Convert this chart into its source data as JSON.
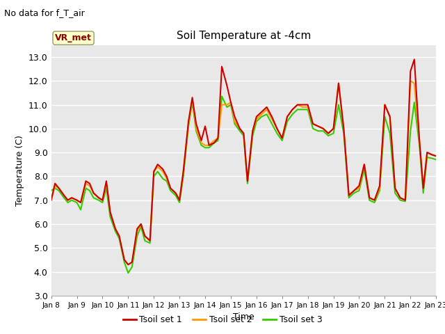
{
  "title": "Soil Temperature at -4cm",
  "xlabel": "Time",
  "ylabel": "Temperature (C)",
  "ylim": [
    3.0,
    13.5
  ],
  "yticks": [
    3.0,
    4.0,
    5.0,
    6.0,
    7.0,
    8.0,
    9.0,
    10.0,
    11.0,
    12.0,
    13.0
  ],
  "bg_color": "#e8e8e8",
  "fig_color": "#ffffff",
  "annotation_text": "No data for f_T_air",
  "legend_label": "VR_met",
  "x_days": [
    8,
    9,
    10,
    11,
    12,
    13,
    14,
    15,
    16,
    17,
    18,
    19,
    20,
    21,
    22,
    23
  ],
  "set1_color": "#cc0000",
  "set2_color": "#ff9900",
  "set3_color": "#33cc00",
  "set1_x": [
    8.0,
    8.15,
    8.3,
    8.5,
    8.65,
    8.8,
    9.0,
    9.15,
    9.35,
    9.5,
    9.65,
    9.85,
    10.0,
    10.15,
    10.3,
    10.5,
    10.65,
    10.85,
    11.0,
    11.15,
    11.35,
    11.5,
    11.65,
    11.85,
    12.0,
    12.15,
    12.35,
    12.5,
    12.65,
    12.85,
    13.0,
    13.15,
    13.35,
    13.5,
    13.65,
    13.85,
    14.0,
    14.15,
    14.35,
    14.5,
    14.65,
    14.85,
    15.0,
    15.15,
    15.35,
    15.5,
    15.65,
    15.85,
    16.0,
    16.2,
    16.4,
    16.6,
    16.8,
    17.0,
    17.2,
    17.4,
    17.6,
    17.8,
    18.0,
    18.2,
    18.4,
    18.6,
    18.8,
    19.0,
    19.2,
    19.4,
    19.6,
    19.8,
    20.0,
    20.2,
    20.4,
    20.6,
    20.8,
    21.0,
    21.2,
    21.4,
    21.6,
    21.8,
    22.0,
    22.15,
    22.35,
    22.5,
    22.65,
    22.85,
    23.0
  ],
  "set1_y": [
    7.0,
    7.7,
    7.5,
    7.2,
    7.0,
    7.1,
    7.0,
    6.9,
    7.8,
    7.7,
    7.3,
    7.1,
    7.0,
    7.8,
    6.5,
    5.8,
    5.5,
    4.5,
    4.3,
    4.4,
    5.8,
    6.0,
    5.5,
    5.3,
    8.2,
    8.5,
    8.3,
    8.0,
    7.5,
    7.3,
    7.0,
    8.2,
    10.3,
    11.3,
    10.2,
    9.5,
    10.1,
    9.3,
    9.4,
    9.6,
    12.6,
    11.8,
    11.1,
    10.5,
    10.0,
    9.8,
    7.8,
    9.9,
    10.5,
    10.7,
    10.9,
    10.5,
    10.0,
    9.6,
    10.5,
    10.8,
    11.0,
    11.0,
    11.0,
    10.2,
    10.1,
    10.0,
    9.8,
    10.0,
    11.9,
    10.0,
    7.2,
    7.4,
    7.6,
    8.5,
    7.1,
    7.0,
    7.6,
    11.0,
    10.5,
    7.5,
    7.1,
    7.0,
    12.4,
    12.9,
    9.5,
    7.5,
    9.0,
    8.9,
    8.85
  ],
  "set2_x": [
    8.0,
    8.15,
    8.3,
    8.5,
    8.65,
    8.8,
    9.0,
    9.15,
    9.35,
    9.5,
    9.65,
    9.85,
    10.0,
    10.15,
    10.3,
    10.5,
    10.65,
    10.85,
    11.0,
    11.15,
    11.35,
    11.5,
    11.65,
    11.85,
    12.0,
    12.15,
    12.35,
    12.5,
    12.65,
    12.85,
    13.0,
    13.15,
    13.35,
    13.5,
    13.65,
    13.85,
    14.0,
    14.15,
    14.35,
    14.5,
    14.65,
    14.85,
    15.0,
    15.15,
    15.35,
    15.5,
    15.65,
    15.85,
    16.0,
    16.2,
    16.4,
    16.6,
    16.8,
    17.0,
    17.2,
    17.4,
    17.6,
    17.8,
    18.0,
    18.2,
    18.4,
    18.6,
    18.8,
    19.0,
    19.2,
    19.4,
    19.6,
    19.8,
    20.0,
    20.2,
    20.4,
    20.6,
    20.8,
    21.0,
    21.2,
    21.4,
    21.6,
    21.8,
    22.0,
    22.15,
    22.35,
    22.5,
    22.65,
    22.85,
    23.0
  ],
  "set2_y": [
    7.0,
    7.6,
    7.5,
    7.2,
    7.0,
    7.1,
    7.0,
    6.9,
    7.7,
    7.6,
    7.3,
    7.1,
    7.0,
    7.7,
    6.5,
    5.8,
    5.5,
    4.5,
    4.3,
    4.4,
    5.7,
    6.0,
    5.5,
    5.3,
    8.2,
    8.4,
    8.2,
    7.9,
    7.5,
    7.3,
    7.0,
    8.2,
    10.2,
    11.2,
    10.0,
    9.4,
    9.3,
    9.3,
    9.5,
    9.6,
    11.0,
    11.0,
    11.1,
    10.3,
    10.0,
    9.8,
    7.8,
    9.9,
    10.4,
    10.6,
    10.8,
    10.4,
    10.0,
    9.6,
    10.5,
    10.8,
    11.0,
    10.9,
    10.9,
    10.2,
    10.1,
    10.0,
    9.8,
    10.0,
    11.9,
    10.0,
    7.2,
    7.4,
    7.5,
    8.5,
    7.1,
    7.0,
    7.5,
    11.0,
    10.5,
    7.5,
    7.1,
    7.0,
    12.0,
    11.9,
    9.5,
    7.5,
    9.0,
    8.9,
    8.85
  ],
  "set3_x": [
    8.0,
    8.15,
    8.3,
    8.5,
    8.65,
    8.8,
    9.0,
    9.15,
    9.35,
    9.5,
    9.65,
    9.85,
    10.0,
    10.15,
    10.3,
    10.5,
    10.65,
    10.85,
    11.0,
    11.15,
    11.35,
    11.5,
    11.65,
    11.85,
    12.0,
    12.15,
    12.35,
    12.5,
    12.65,
    12.85,
    13.0,
    13.15,
    13.35,
    13.5,
    13.65,
    13.85,
    14.0,
    14.15,
    14.35,
    14.5,
    14.65,
    14.85,
    15.0,
    15.15,
    15.35,
    15.5,
    15.65,
    15.85,
    16.0,
    16.2,
    16.4,
    16.6,
    16.8,
    17.0,
    17.2,
    17.4,
    17.6,
    17.8,
    18.0,
    18.2,
    18.4,
    18.6,
    18.8,
    19.0,
    19.2,
    19.4,
    19.6,
    19.8,
    20.0,
    20.2,
    20.4,
    20.6,
    20.8,
    21.0,
    21.2,
    21.4,
    21.6,
    21.8,
    22.0,
    22.15,
    22.35,
    22.5,
    22.65,
    22.85,
    23.0
  ],
  "set3_y": [
    7.4,
    7.5,
    7.4,
    7.1,
    6.9,
    7.0,
    6.9,
    6.6,
    7.5,
    7.4,
    7.1,
    7.0,
    6.9,
    7.5,
    6.3,
    5.7,
    5.4,
    4.4,
    3.95,
    4.2,
    5.5,
    5.9,
    5.3,
    5.2,
    8.0,
    8.2,
    7.9,
    7.8,
    7.4,
    7.2,
    6.9,
    8.0,
    10.1,
    11.1,
    9.9,
    9.3,
    9.2,
    9.2,
    9.4,
    9.5,
    11.35,
    10.9,
    11.0,
    10.2,
    9.9,
    9.7,
    7.7,
    9.7,
    10.3,
    10.5,
    10.6,
    10.2,
    9.8,
    9.5,
    10.3,
    10.6,
    10.8,
    10.8,
    10.8,
    10.0,
    9.9,
    9.9,
    9.7,
    9.8,
    11.0,
    9.8,
    7.1,
    7.3,
    7.4,
    8.3,
    7.0,
    6.9,
    7.4,
    10.5,
    9.8,
    7.3,
    7.0,
    6.95,
    9.9,
    11.1,
    9.3,
    7.3,
    8.8,
    8.75,
    8.7
  ]
}
